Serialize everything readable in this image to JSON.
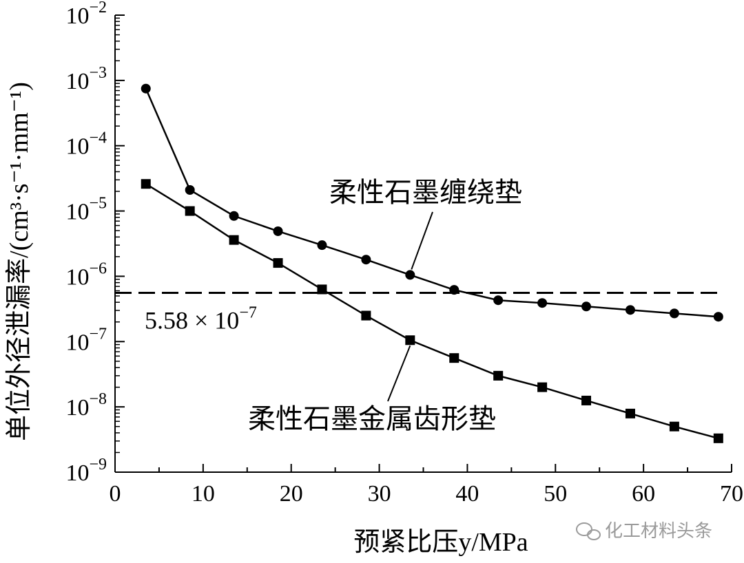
{
  "chart_data": {
    "type": "line",
    "xlabel": "预紧比压y/MPa",
    "ylabel": "单位外径泄漏率/(cm³·s⁻¹·mm⁻¹)",
    "xlim": [
      0,
      70
    ],
    "ylim": [
      1e-09,
      0.01
    ],
    "yscale": "log",
    "x_ticks": [
      0,
      10,
      20,
      30,
      40,
      50,
      60,
      70
    ],
    "x_tick_labels": [
      "0",
      "10",
      "20",
      "30",
      "40",
      "50",
      "60",
      "70"
    ],
    "y_ticks": [
      1e-09,
      1e-08,
      1e-07,
      1e-06,
      1e-05,
      0.0001,
      0.001,
      0.01
    ],
    "y_tick_labels": [
      {
        "base": "10",
        "exp": "−9"
      },
      {
        "base": "10",
        "exp": "−8"
      },
      {
        "base": "10",
        "exp": "−7"
      },
      {
        "base": "10",
        "exp": "−6"
      },
      {
        "base": "10",
        "exp": "−5"
      },
      {
        "base": "10",
        "exp": "−4"
      },
      {
        "base": "10",
        "exp": "−3"
      },
      {
        "base": "10",
        "exp": "−2"
      }
    ],
    "grid": false,
    "series": [
      {
        "name": "柔性石墨缠绕垫",
        "marker": "circle",
        "x": [
          3.5,
          8.5,
          13.5,
          18.5,
          23.5,
          28.5,
          33.5,
          38.5,
          43.5,
          48.5,
          53.5,
          58.5,
          63.5,
          68.5
        ],
        "y": [
          0.00075,
          2.1e-05,
          8.4e-06,
          4.9e-06,
          3e-06,
          1.8e-06,
          1.05e-06,
          6.2e-07,
          4.3e-07,
          3.9e-07,
          3.45e-07,
          3.05e-07,
          2.7e-07,
          2.4e-07
        ]
      },
      {
        "name": "柔性石墨金属齿形垫",
        "marker": "square",
        "x": [
          3.5,
          8.5,
          13.5,
          18.5,
          23.5,
          28.5,
          33.5,
          38.5,
          43.5,
          48.5,
          53.5,
          58.5,
          63.5,
          68.5
        ],
        "y": [
          2.6e-05,
          1e-05,
          3.6e-06,
          1.6e-06,
          6.3e-07,
          2.5e-07,
          1.05e-07,
          5.6e-08,
          3e-08,
          2e-08,
          1.25e-08,
          7.9e-09,
          5e-09,
          3.3e-09
        ]
      }
    ],
    "threshold": {
      "value": 5.58e-07,
      "label_main": "5.58 × 10",
      "label_exp": "−7"
    },
    "annotations": [
      {
        "text": "柔性石墨缠绕垫",
        "series": 0,
        "point_index": 6
      },
      {
        "text": "柔性石墨金属齿形垫",
        "series": 1,
        "point_index": 6
      }
    ],
    "watermark": "化工材料头条"
  }
}
